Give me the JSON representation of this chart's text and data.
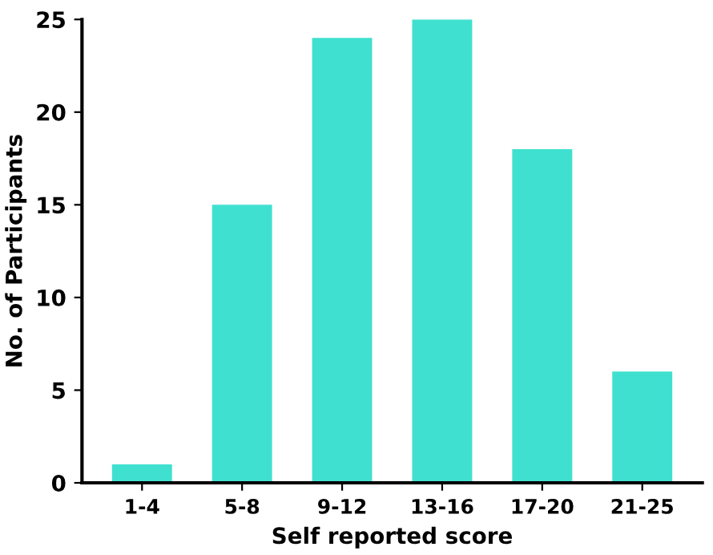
{
  "chart_data": {
    "type": "bar",
    "xlabel": "Self reported score",
    "ylabel": "No. of Participants",
    "categories": [
      "1-4",
      "5-8",
      "9-12",
      "13-16",
      "17-20",
      "21-25"
    ],
    "values": [
      1,
      15,
      24,
      25,
      18,
      6
    ],
    "color": "#40e0d0",
    "ylim": [
      0,
      25
    ],
    "yticks": [
      0,
      5,
      10,
      15,
      20,
      25
    ],
    "grid": false
  }
}
